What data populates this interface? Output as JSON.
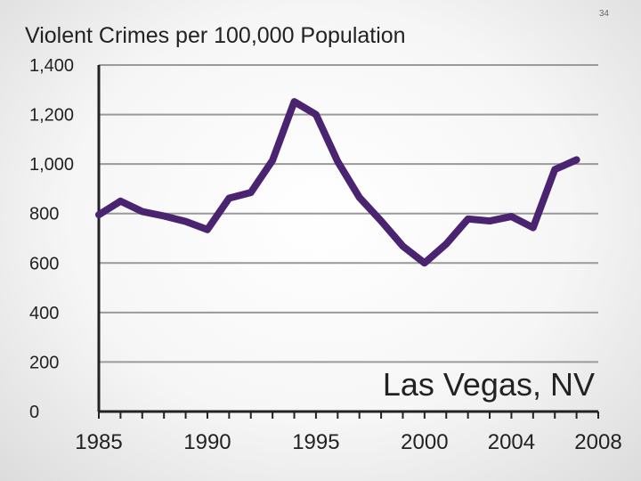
{
  "slide_number": "34",
  "chart_data": {
    "type": "line",
    "title": "Violent Crimes per 100,000 Population",
    "xlabel": "",
    "ylabel": "",
    "annotation": "Las Vegas, NV",
    "x": [
      1985,
      1986,
      1987,
      1988,
      1989,
      1990,
      1991,
      1992,
      1993,
      1994,
      1995,
      1996,
      1997,
      1998,
      1999,
      2000,
      2001,
      2002,
      2003,
      2004,
      2005,
      2006,
      2007
    ],
    "series": [
      {
        "values": [
          795,
          850,
          808,
          790,
          768,
          735,
          862,
          885,
          1015,
          1252,
          1200,
          1010,
          865,
          770,
          668,
          600,
          677,
          778,
          770,
          788,
          743,
          978,
          1017
        ]
      }
    ],
    "xlim": [
      1985,
      2008
    ],
    "ylim": [
      0,
      1400
    ],
    "y_ticks": [
      0,
      200,
      400,
      600,
      800,
      1000,
      1200,
      1400
    ],
    "y_tick_labels": [
      "0",
      "200",
      "400",
      "600",
      "800",
      "1,000",
      "1,200",
      "1,400"
    ],
    "x_tick_labels": [
      {
        "value": 1985,
        "label": "1985"
      },
      {
        "value": 1990,
        "label": "1990"
      },
      {
        "value": 1995,
        "label": "1995"
      },
      {
        "value": 2000,
        "label": "2000"
      },
      {
        "value": 2004,
        "label": "2004"
      },
      {
        "value": 2008,
        "label": "2008"
      }
    ],
    "grid": "horizontal",
    "colors": {
      "line": "#4a2470",
      "grid": "#9a9a9a",
      "axis": "#222222"
    }
  }
}
